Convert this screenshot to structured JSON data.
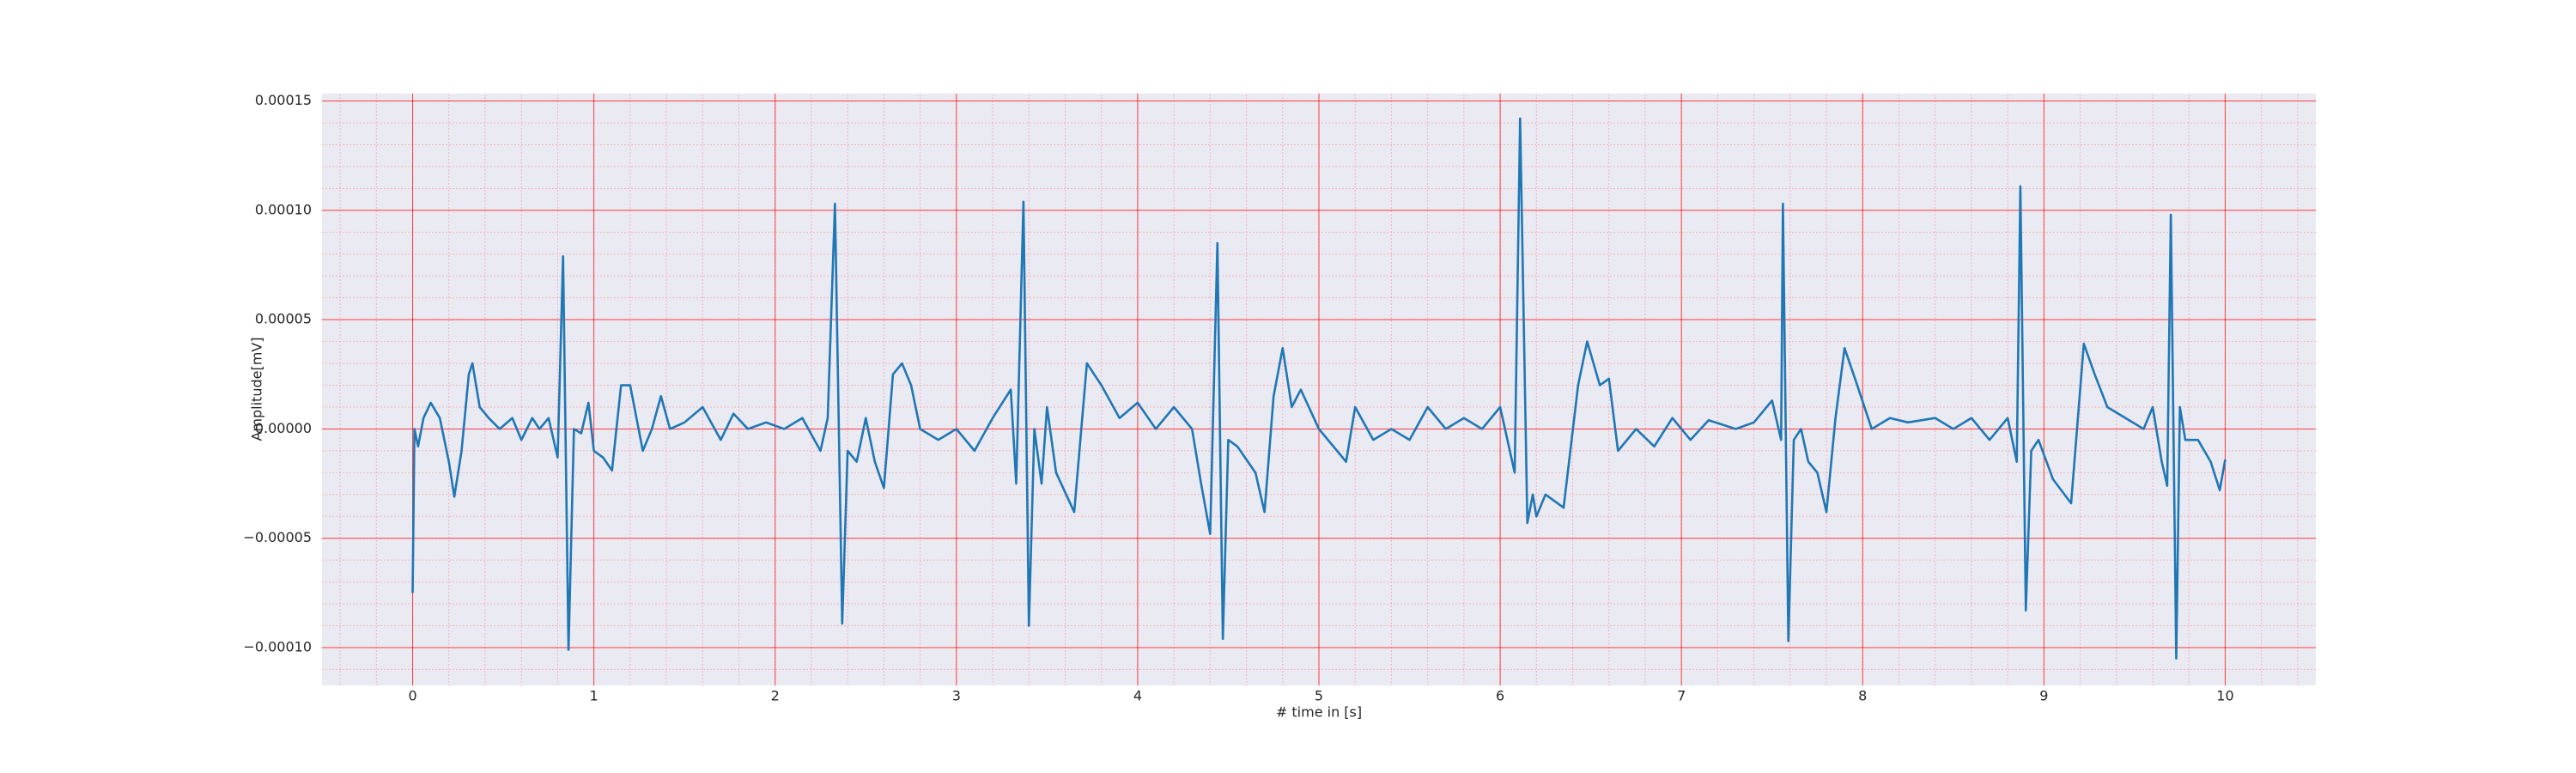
{
  "chart_data": {
    "type": "line",
    "xlabel": "# time in [s]",
    "ylabel": "Amplitude[mV]",
    "xlim": [
      -0.5,
      10.5
    ],
    "ylim": [
      -0.0001173,
      0.0001534
    ],
    "xticks": [
      0,
      1,
      2,
      3,
      4,
      5,
      6,
      7,
      8,
      9,
      10
    ],
    "yticks": [
      {
        "value": -0.0001,
        "label": "−0.00010"
      },
      {
        "value": -5e-05,
        "label": "−0.00005"
      },
      {
        "value": 0,
        "label": "0.00000"
      },
      {
        "value": 5e-05,
        "label": "0.00005"
      },
      {
        "value": 0.0001,
        "label": "0.00010"
      },
      {
        "value": 0.00015,
        "label": "0.00015"
      }
    ],
    "grid": true,
    "grid_color": "#ff0000",
    "minor_grid": true,
    "minor_grid_color": "#ff9aa8",
    "background": "#eaeaf2",
    "color": "#1f77b4",
    "x": [
      0,
      0.01,
      0.03,
      0.06,
      0.1,
      0.15,
      0.2,
      0.23,
      0.27,
      0.31,
      0.33,
      0.37,
      0.42,
      0.48,
      0.55,
      0.6,
      0.66,
      0.7,
      0.75,
      0.8,
      0.83,
      0.86,
      0.89,
      0.93,
      0.97,
      1.0,
      1.05,
      1.1,
      1.15,
      1.2,
      1.27,
      1.32,
      1.37,
      1.42,
      1.5,
      1.6,
      1.7,
      1.77,
      1.85,
      1.95,
      2.05,
      2.15,
      2.25,
      2.29,
      2.33,
      2.37,
      2.4,
      2.45,
      2.5,
      2.55,
      2.6,
      2.65,
      2.7,
      2.75,
      2.8,
      2.9,
      3.0,
      3.1,
      3.2,
      3.3,
      3.33,
      3.37,
      3.4,
      3.43,
      3.47,
      3.5,
      3.55,
      3.65,
      3.72,
      3.8,
      3.9,
      4.0,
      4.1,
      4.2,
      4.3,
      4.35,
      4.4,
      4.44,
      4.47,
      4.5,
      4.55,
      4.65,
      4.7,
      4.75,
      4.8,
      4.85,
      4.9,
      5.0,
      5.1,
      5.15,
      5.2,
      5.3,
      5.4,
      5.5,
      5.6,
      5.7,
      5.8,
      5.9,
      6.0,
      6.08,
      6.11,
      6.15,
      6.18,
      6.2,
      6.25,
      6.35,
      6.43,
      6.48,
      6.55,
      6.6,
      6.65,
      6.75,
      6.85,
      6.95,
      7.05,
      7.15,
      7.3,
      7.4,
      7.5,
      7.55,
      7.56,
      7.59,
      7.62,
      7.66,
      7.7,
      7.75,
      7.8,
      7.85,
      7.9,
      7.97,
      8.05,
      8.15,
      8.25,
      8.4,
      8.5,
      8.6,
      8.7,
      8.8,
      8.85,
      8.87,
      8.9,
      8.93,
      8.97,
      9.05,
      9.15,
      9.22,
      9.28,
      9.35,
      9.45,
      9.55,
      9.6,
      9.65,
      9.68,
      9.7,
      9.73,
      9.75,
      9.78,
      9.85,
      9.92,
      9.97,
      10.0
    ],
    "values": [
      -7.5e-05,
      0,
      -8e-06,
      5e-06,
      1.2e-05,
      5e-06,
      -1.5e-05,
      -3.1e-05,
      -1e-05,
      2.5e-05,
      3e-05,
      1e-05,
      5e-06,
      0,
      5e-06,
      -5e-06,
      5e-06,
      0,
      5e-06,
      -1.3e-05,
      7.9e-05,
      -0.000101,
      0,
      -2e-06,
      1.2e-05,
      -1e-05,
      -1.3e-05,
      -1.9e-05,
      2e-05,
      2e-05,
      -1e-05,
      0,
      1.5e-05,
      0,
      3e-06,
      1e-05,
      -5e-06,
      7e-06,
      0,
      3e-06,
      0,
      5e-06,
      -1e-05,
      5e-06,
      0.000103,
      -8.9e-05,
      -1e-05,
      -1.5e-05,
      5e-06,
      -1.5e-05,
      -2.7e-05,
      2.5e-05,
      3e-05,
      2e-05,
      0,
      -5e-06,
      0,
      -1e-05,
      5e-06,
      1.8e-05,
      -2.5e-05,
      0.000104,
      -9e-05,
      0,
      -2.5e-05,
      1e-05,
      -2e-05,
      -3.8e-05,
      3e-05,
      2e-05,
      5e-06,
      1.2e-05,
      0,
      1e-05,
      0,
      -2.5e-05,
      -4.8e-05,
      8.5e-05,
      -9.6e-05,
      -5e-06,
      -8e-06,
      -2e-05,
      -3.8e-05,
      1.5e-05,
      3.7e-05,
      1e-05,
      1.8e-05,
      0,
      -1e-05,
      -1.5e-05,
      1e-05,
      -5e-06,
      0,
      -5e-06,
      1e-05,
      0,
      5e-06,
      0,
      1e-05,
      -2e-05,
      0.000142,
      -4.3e-05,
      -3e-05,
      -4e-05,
      -3e-05,
      -3.6e-05,
      2e-05,
      4e-05,
      2e-05,
      2.3e-05,
      -1e-05,
      0,
      -8e-06,
      5e-06,
      -5e-06,
      4e-06,
      0,
      3e-06,
      1.3e-05,
      -5e-06,
      0.000103,
      -9.7e-05,
      -5e-06,
      0,
      -1.5e-05,
      -2e-05,
      -3.8e-05,
      5e-06,
      3.7e-05,
      2e-05,
      0,
      5e-06,
      3e-06,
      5e-06,
      0,
      5e-06,
      -5e-06,
      5e-06,
      -1.5e-05,
      0.000111,
      -8.3e-05,
      -1e-05,
      -5e-06,
      -2.3e-05,
      -3.4e-05,
      3.9e-05,
      2.5e-05,
      1e-05,
      5e-06,
      0,
      1e-05,
      -1.5e-05,
      -2.6e-05,
      9.8e-05,
      -0.000105,
      1e-05,
      -5e-06,
      -5e-06,
      -1.5e-05,
      -2.8e-05,
      -1.4e-05
    ]
  }
}
